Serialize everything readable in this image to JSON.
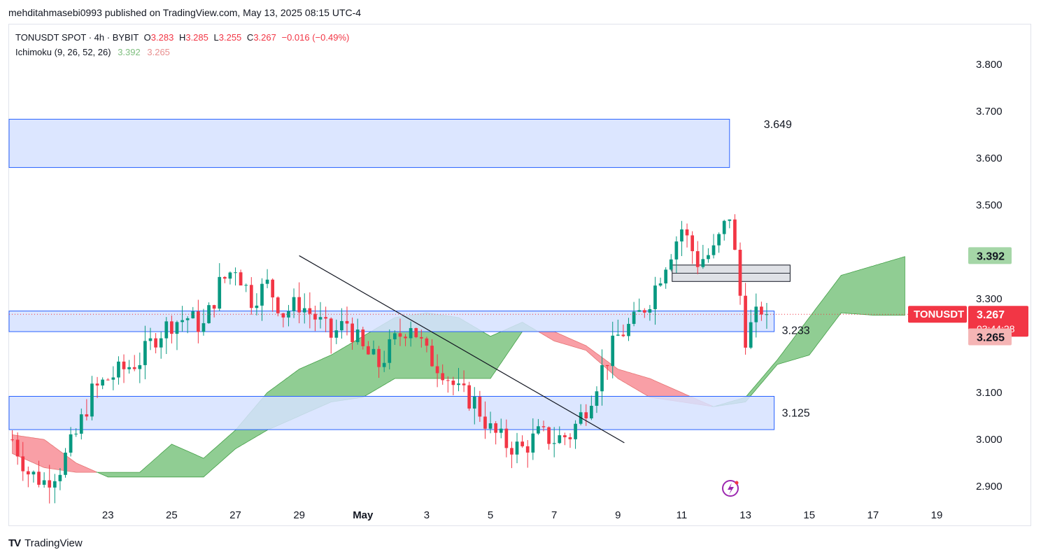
{
  "header": {
    "publish_line": "mehditahmasebi0993 published on TradingView.com, May 13, 2025 08:15 UTC-4"
  },
  "legend": {
    "symbol_line": "TONUSDT SPOT · 4h · BYBIT",
    "o_label": "O",
    "o_value": "3.283",
    "h_label": "H",
    "h_value": "3.285",
    "l_label": "L",
    "l_value": "3.255",
    "c_label": "C",
    "c_value": "3.267",
    "change": "−0.016 (−0.49%)",
    "indicator_name": "Ichimoku (9, 26, 52, 26)",
    "indicator_lead": "3.392",
    "indicator_lag": "3.265"
  },
  "brand": {
    "logo": "TV",
    "name": "TradingView"
  },
  "colors": {
    "up": "#089981",
    "down": "#f23645",
    "cloud_bull": "#4caf50",
    "cloud_bear": "#f23645",
    "zone_fill": "#d6e2ff",
    "zone_stroke": "#2962ff",
    "accent_label_red": "#f23645",
    "label_green": "#a5d6a7",
    "label_pink": "#f5b5b5"
  },
  "chart_data": {
    "type": "candlestick",
    "title": "TONUSDT SPOT · 4h · BYBIT",
    "y_range": [
      2.86,
      3.885
    ],
    "x_range_days": [
      -2.1,
      27.9
    ],
    "y_ticks": [
      "3.800",
      "3.700",
      "3.600",
      "3.500",
      "3.300",
      "3.100",
      "3.000",
      "2.900"
    ],
    "x_ticks": [
      {
        "label": "23",
        "day": 1
      },
      {
        "label": "25",
        "day": 3
      },
      {
        "label": "27",
        "day": 5
      },
      {
        "label": "29",
        "day": 7
      },
      {
        "label": "May",
        "day": 9,
        "bold": true
      },
      {
        "label": "3",
        "day": 11
      },
      {
        "label": "5",
        "day": 13
      },
      {
        "label": "7",
        "day": 15
      },
      {
        "label": "9",
        "day": 17
      },
      {
        "label": "11",
        "day": 19
      },
      {
        "label": "13",
        "day": 21
      },
      {
        "label": "15",
        "day": 23
      },
      {
        "label": "17",
        "day": 25
      },
      {
        "label": "19",
        "day": 27
      }
    ],
    "candle_anchors_close": [
      [
        -2,
        3.0
      ],
      [
        -1.5,
        2.93
      ],
      [
        -1,
        2.91
      ],
      [
        -0.5,
        2.94
      ],
      [
        0,
        3.01
      ],
      [
        0.5,
        3.1
      ],
      [
        1,
        3.13
      ],
      [
        1.5,
        3.15
      ],
      [
        2,
        3.17
      ],
      [
        2.5,
        3.22
      ],
      [
        3,
        3.25
      ],
      [
        3.5,
        3.26
      ],
      [
        4,
        3.24
      ],
      [
        4.5,
        3.33
      ],
      [
        5,
        3.37
      ],
      [
        5.5,
        3.3
      ],
      [
        6,
        3.33
      ],
      [
        6.5,
        3.27
      ],
      [
        7,
        3.29
      ],
      [
        7.5,
        3.26
      ],
      [
        8,
        3.22
      ],
      [
        8.5,
        3.25
      ],
      [
        9,
        3.19
      ],
      [
        9.5,
        3.16
      ],
      [
        10,
        3.21
      ],
      [
        10.5,
        3.25
      ],
      [
        11,
        3.18
      ],
      [
        11.5,
        3.15
      ],
      [
        12,
        3.1
      ],
      [
        12.5,
        3.08
      ],
      [
        13,
        3.02
      ],
      [
        13.5,
        2.99
      ],
      [
        14,
        2.98
      ],
      [
        14.5,
        3.01
      ],
      [
        15,
        3.0
      ],
      [
        15.5,
        3.01
      ],
      [
        16,
        3.07
      ],
      [
        16.5,
        3.15
      ],
      [
        17,
        3.22
      ],
      [
        17.5,
        3.25
      ],
      [
        18,
        3.3
      ],
      [
        18.5,
        3.38
      ],
      [
        19,
        3.45
      ],
      [
        19.5,
        3.38
      ],
      [
        20,
        3.4
      ],
      [
        20.5,
        3.48
      ],
      [
        21,
        3.22
      ],
      [
        21.5,
        3.28
      ],
      [
        21.8,
        3.267
      ]
    ],
    "ichimoku_cloud": {
      "span_a": [
        [
          -2,
          2.97
        ],
        [
          -1,
          2.94
        ],
        [
          0,
          2.93
        ],
        [
          1,
          2.93
        ],
        [
          2,
          2.93
        ],
        [
          3,
          2.99
        ],
        [
          4,
          2.96
        ],
        [
          5,
          3.02
        ],
        [
          6,
          3.1
        ],
        [
          7,
          3.15
        ],
        [
          8,
          3.18
        ],
        [
          9,
          3.22
        ],
        [
          10,
          3.26
        ],
        [
          11,
          3.27
        ],
        [
          12,
          3.26
        ],
        [
          13,
          3.22
        ],
        [
          14,
          3.25
        ],
        [
          15,
          3.21
        ],
        [
          16,
          3.19
        ],
        [
          17,
          3.13
        ],
        [
          18,
          3.09
        ],
        [
          19,
          3.08
        ],
        [
          20,
          3.07
        ],
        [
          21,
          3.09
        ],
        [
          22,
          3.17
        ],
        [
          23,
          3.26
        ],
        [
          24,
          3.35
        ],
        [
          25,
          3.37
        ],
        [
          26,
          3.39
        ]
      ],
      "span_b": [
        [
          -2,
          3.01
        ],
        [
          -1,
          3.0
        ],
        [
          0,
          2.95
        ],
        [
          1,
          2.92
        ],
        [
          2,
          2.92
        ],
        [
          3,
          2.92
        ],
        [
          4,
          2.92
        ],
        [
          5,
          2.98
        ],
        [
          6,
          3.02
        ],
        [
          7,
          3.05
        ],
        [
          8,
          3.08
        ],
        [
          9,
          3.09
        ],
        [
          10,
          3.13
        ],
        [
          11,
          3.13
        ],
        [
          12,
          3.13
        ],
        [
          13,
          3.13
        ],
        [
          14,
          3.23
        ],
        [
          15,
          3.23
        ],
        [
          16,
          3.2
        ],
        [
          17,
          3.15
        ],
        [
          18,
          3.13
        ],
        [
          19,
          3.1
        ],
        [
          20,
          3.07
        ],
        [
          21,
          3.08
        ],
        [
          22,
          3.16
        ],
        [
          23,
          3.18
        ],
        [
          24,
          3.27
        ],
        [
          25,
          3.265
        ],
        [
          26,
          3.265
        ]
      ]
    },
    "zones": [
      {
        "low": 3.58,
        "high": 3.683,
        "label": "3.649",
        "day_start": -2.1,
        "day_end": 20.5
      },
      {
        "low": 3.23,
        "high": 3.274,
        "label": "3.233",
        "day_start": -2.1,
        "day_end": 21.9
      },
      {
        "low": 3.021,
        "high": 3.092,
        "label": "3.125",
        "day_start": -2.1,
        "day_end": 21.9
      },
      {
        "low": 3.337,
        "high": 3.372,
        "label": "",
        "day_start": 18.7,
        "day_end": 22.4
      }
    ],
    "trendline": {
      "from": [
        7.0,
        3.392
      ],
      "to": [
        17.2,
        2.993
      ]
    },
    "last_price_line": 3.267,
    "price_labels": [
      {
        "value": 3.392,
        "text": "3.392",
        "style": "green"
      },
      {
        "value": 3.267,
        "text": "3.267",
        "style": "red",
        "ticker": "TONUSDT",
        "countdown": "03:44:28"
      },
      {
        "value": 3.265,
        "text": "3.265",
        "style": "pink"
      }
    ]
  }
}
